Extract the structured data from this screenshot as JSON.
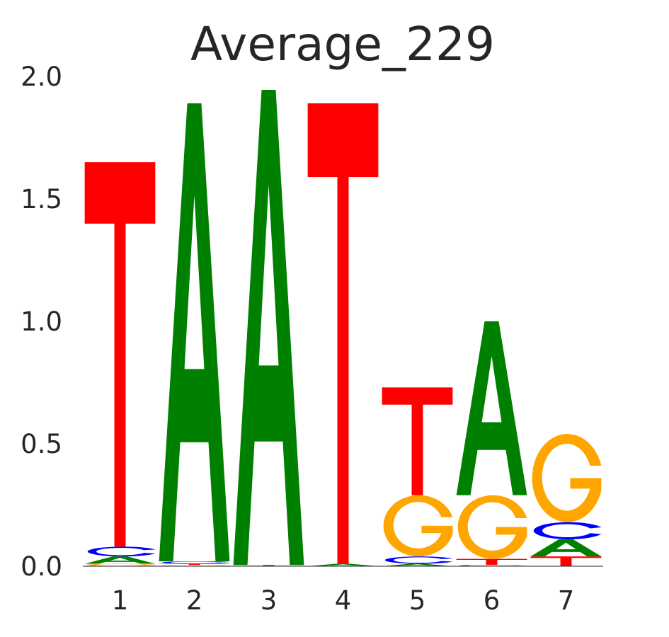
{
  "chart_data": {
    "type": "sequence-logo",
    "title": "Average_229",
    "xlabel": "",
    "ylabel": "",
    "ylim": [
      0,
      2
    ],
    "yticks": [
      "0.0",
      "0.5",
      "1.0",
      "1.5",
      "2.0"
    ],
    "yticks_values": [
      0,
      0.5,
      1.0,
      1.5,
      2.0
    ],
    "grid": false,
    "colors": {
      "A": "#008000",
      "C": "#0000ff",
      "G": "#ffa500",
      "T": "#ff0000"
    },
    "positions": [
      {
        "label": "1",
        "stack": [
          {
            "base": "G",
            "height": 0.01
          },
          {
            "base": "A",
            "height": 0.03
          },
          {
            "base": "C",
            "height": 0.04
          },
          {
            "base": "T",
            "height": 1.57
          }
        ]
      },
      {
        "label": "2",
        "stack": [
          {
            "base": "G",
            "height": 0.005
          },
          {
            "base": "T",
            "height": 0.005
          },
          {
            "base": "C",
            "height": 0.01
          },
          {
            "base": "A",
            "height": 1.87
          }
        ]
      },
      {
        "label": "3",
        "stack": [
          {
            "base": "T",
            "height": 0.005
          },
          {
            "base": "A",
            "height": 1.94
          }
        ]
      },
      {
        "label": "4",
        "stack": [
          {
            "base": "A",
            "height": 0.01
          },
          {
            "base": "T",
            "height": 1.88
          }
        ]
      },
      {
        "label": "5",
        "stack": [
          {
            "base": "A",
            "height": 0.01
          },
          {
            "base": "C",
            "height": 0.03
          },
          {
            "base": "G",
            "height": 0.25
          },
          {
            "base": "T",
            "height": 0.44
          }
        ]
      },
      {
        "label": "6",
        "stack": [
          {
            "base": "C",
            "height": 0.005
          },
          {
            "base": "T",
            "height": 0.025
          },
          {
            "base": "G",
            "height": 0.26
          },
          {
            "base": "A",
            "height": 0.71
          }
        ]
      },
      {
        "label": "7",
        "stack": [
          {
            "base": "T",
            "height": 0.04
          },
          {
            "base": "A",
            "height": 0.07
          },
          {
            "base": "C",
            "height": 0.07
          },
          {
            "base": "G",
            "height": 0.36
          }
        ]
      }
    ]
  }
}
